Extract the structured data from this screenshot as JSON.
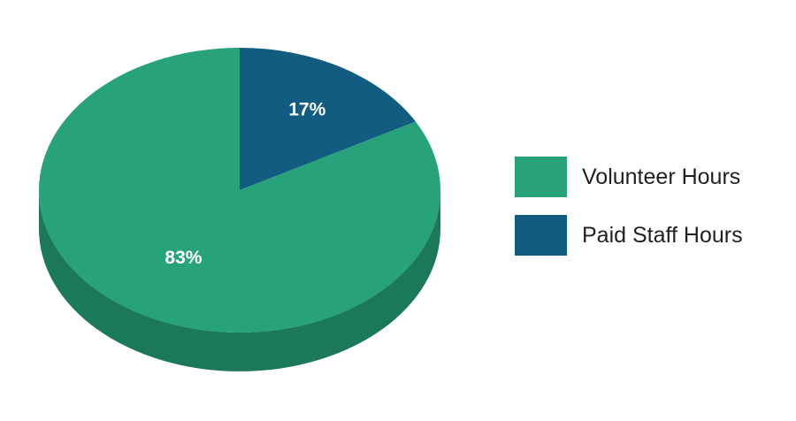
{
  "chart_data": {
    "type": "pie",
    "title": "",
    "slices": [
      {
        "label": "Volunteer Hours",
        "value": 83,
        "display": "83%",
        "color": "#27a27b",
        "side_color": "#1b7858"
      },
      {
        "label": "Paid Staff Hours",
        "value": 17,
        "display": "17%",
        "color": "#115c80",
        "side_color": "#0d4a66"
      }
    ],
    "legend": {
      "placement": "right"
    },
    "style": "3d"
  }
}
